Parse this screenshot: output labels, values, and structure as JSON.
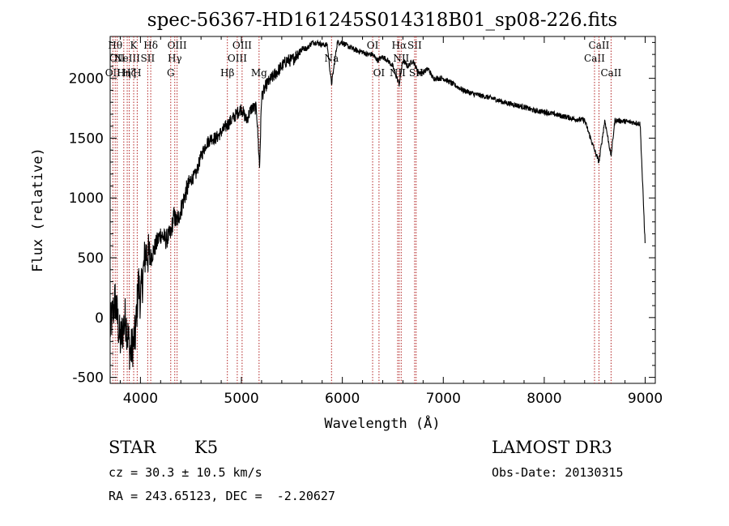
{
  "chart_data": {
    "type": "line",
    "title": "spec-56367-HD161245S014318B01_sp08-226.fits",
    "xlabel": "Wavelength (Å)",
    "ylabel": "Flux (relative)",
    "xlim": [
      3700,
      9100
    ],
    "ylim": [
      -550,
      2350
    ],
    "xticks": [
      4000,
      5000,
      6000,
      7000,
      8000,
      9000
    ],
    "yticks": [
      -500,
      0,
      500,
      1000,
      1500,
      2000
    ],
    "grid": false,
    "series": [
      {
        "x": [
          3700,
          3750,
          3800,
          3850,
          3900,
          3950,
          3980,
          4000,
          4050,
          4100,
          4150,
          4200,
          4250,
          4300,
          4330,
          4360,
          4400,
          4450,
          4500,
          4550,
          4600,
          4650,
          4700,
          4750,
          4800,
          4850,
          4900,
          4950,
          5000,
          5050,
          5100,
          5150,
          5180,
          5200,
          5250,
          5300,
          5350,
          5400,
          5450,
          5500,
          5550,
          5600,
          5650,
          5700,
          5750,
          5800,
          5850,
          5893,
          5950,
          6000,
          6050,
          6100,
          6150,
          6200,
          6250,
          6300,
          6350,
          6400,
          6450,
          6500,
          6563,
          6600,
          6650,
          6700,
          6750,
          6800,
          6850,
          6900,
          6950,
          7000,
          7100,
          7200,
          7300,
          7400,
          7500,
          7600,
          7700,
          7800,
          7900,
          8000,
          8100,
          8200,
          8300,
          8400,
          8498,
          8542,
          8600,
          8662,
          8700,
          8800,
          8900,
          8950,
          9000
        ],
        "y": [
          -100,
          150,
          -200,
          0,
          -300,
          -150,
          300,
          150,
          550,
          500,
          600,
          700,
          650,
          700,
          850,
          800,
          900,
          1050,
          1150,
          1200,
          1350,
          1450,
          1500,
          1500,
          1550,
          1600,
          1650,
          1700,
          1750,
          1650,
          1750,
          1750,
          1250,
          1850,
          1950,
          2000,
          2050,
          2100,
          2150,
          2150,
          2200,
          2250,
          2250,
          2300,
          2300,
          2280,
          2280,
          1950,
          2300,
          2300,
          2270,
          2250,
          2230,
          2220,
          2200,
          2200,
          2150,
          2180,
          2150,
          2100,
          1950,
          2150,
          2100,
          2150,
          2050,
          2050,
          2080,
          2000,
          2000,
          2000,
          1950,
          1900,
          1870,
          1850,
          1830,
          1800,
          1780,
          1760,
          1730,
          1720,
          1700,
          1680,
          1660,
          1650,
          1400,
          1300,
          1650,
          1350,
          1650,
          1640,
          1630,
          1620,
          600
        ]
      }
    ],
    "lines": [
      {
        "x": 3727,
        "row": 2,
        "label": "OII"
      },
      {
        "x": 3750,
        "row": 0,
        "label": "Hθ"
      },
      {
        "x": 3770,
        "row": 1,
        "label": "OII"
      },
      {
        "x": 3835,
        "row": 2,
        "label": "Hη"
      },
      {
        "x": 3869,
        "row": 1,
        "label": "NeIII"
      },
      {
        "x": 3889,
        "row": 2,
        "label": "Hζ"
      },
      {
        "x": 3933,
        "row": 0,
        "label": "K"
      },
      {
        "x": 3968,
        "row": 2,
        "label": "H"
      },
      {
        "x": 4072,
        "row": 1,
        "label": "SII"
      },
      {
        "x": 4102,
        "row": 0,
        "label": "Hδ"
      },
      {
        "x": 4300,
        "row": 2,
        "label": "G"
      },
      {
        "x": 4340,
        "row": 1,
        "label": "Hγ"
      },
      {
        "x": 4363,
        "row": 0,
        "label": "OIII"
      },
      {
        "x": 4861,
        "row": 2,
        "label": "Hβ"
      },
      {
        "x": 4959,
        "row": 1,
        "label": "OIII"
      },
      {
        "x": 5007,
        "row": 0,
        "label": "OIII"
      },
      {
        "x": 5175,
        "row": 2,
        "label": "Mg"
      },
      {
        "x": 5893,
        "row": 1,
        "label": "Na"
      },
      {
        "x": 6300,
        "row": 0,
        "label": "OI"
      },
      {
        "x": 6363,
        "row": 2,
        "label": "OI"
      },
      {
        "x": 6548,
        "row": 2,
        "label": "NII"
      },
      {
        "x": 6563,
        "row": 0,
        "label": "Hα"
      },
      {
        "x": 6583,
        "row": 1,
        "label": "NII"
      },
      {
        "x": 6716,
        "row": 0,
        "label": "SII"
      },
      {
        "x": 6731,
        "row": 2,
        "label": "SII"
      },
      {
        "x": 8498,
        "row": 1,
        "label": "CaII"
      },
      {
        "x": 8542,
        "row": 0,
        "label": "CaII"
      },
      {
        "x": 8662,
        "row": 2,
        "label": "CaII"
      }
    ]
  },
  "info": {
    "object_class": "STAR",
    "subclass": "K5",
    "survey": "LAMOST DR3",
    "cz": "cz = 30.3 ± 10.5 km/s",
    "obs_date": "Obs-Date: 20130315",
    "coords": "RA = 243.65123, DEC =  -2.20627"
  }
}
